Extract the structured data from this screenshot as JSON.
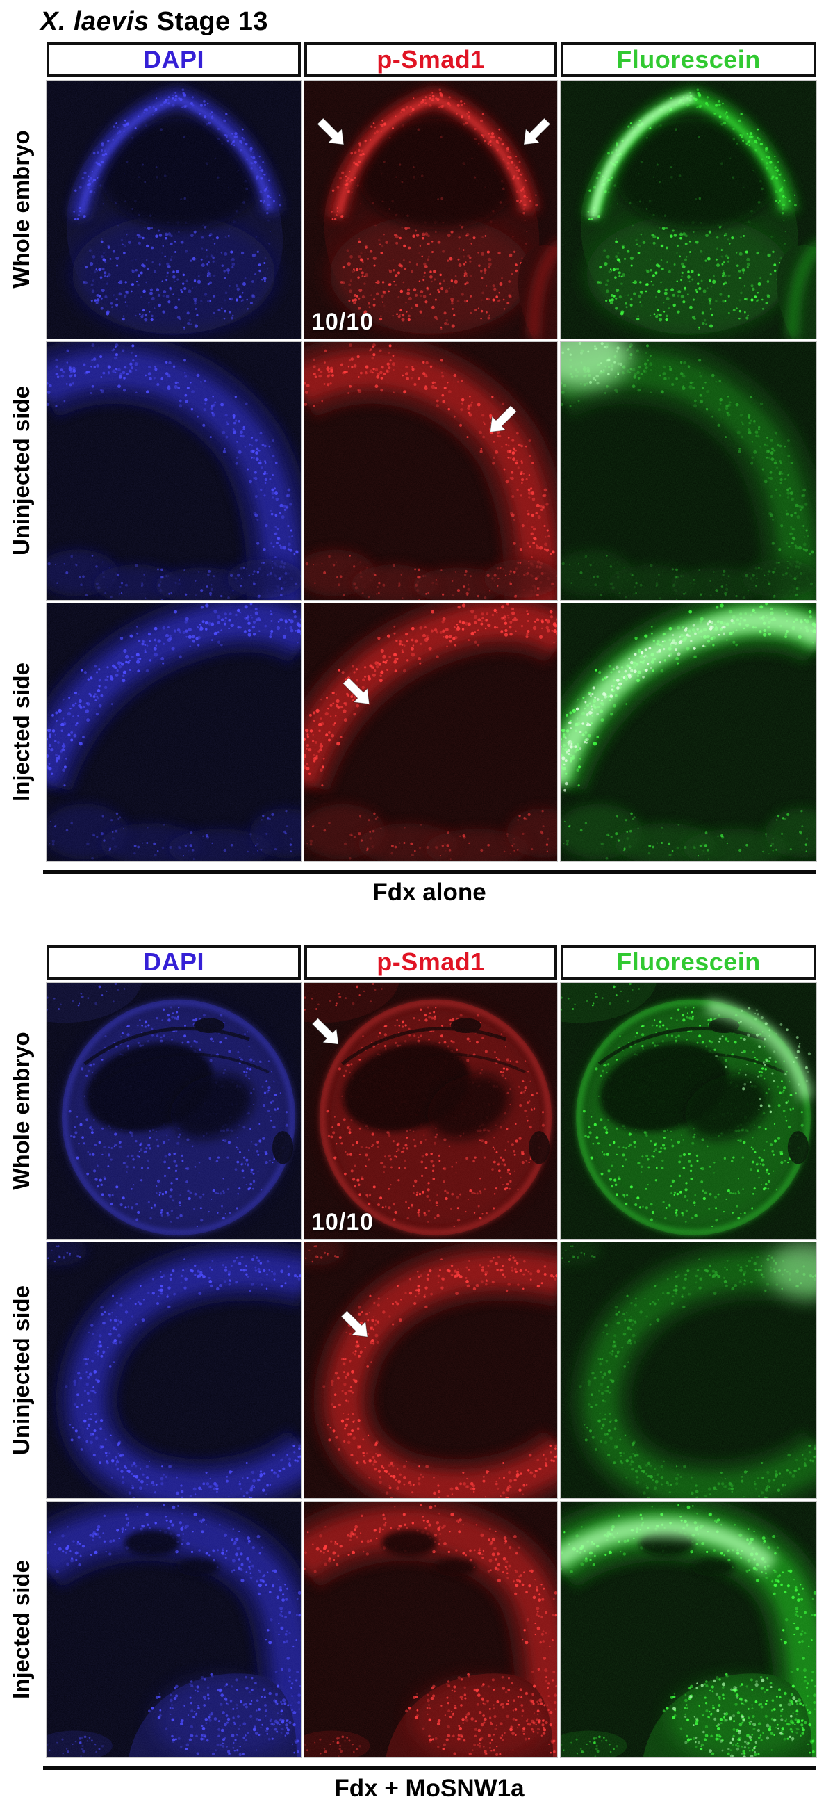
{
  "figure_title": {
    "species": "X. laevis",
    "stage": "Stage 13"
  },
  "channel_headers": [
    {
      "id": "dapi",
      "label": "DAPI",
      "color": "#3520d6"
    },
    {
      "id": "psmad1",
      "label": "p-Smad1",
      "color": "#e01424"
    },
    {
      "id": "fluorescein",
      "label": "Fluorescein",
      "color": "#31c931"
    }
  ],
  "groups": [
    {
      "id": "fdx-alone",
      "caption": "Fdx alone",
      "rows": [
        {
          "label": "Whole embryo",
          "scene": "s1",
          "panels": [
            {
              "channel": "dapi"
            },
            {
              "channel": "psmad1",
              "count_label": "10/10",
              "arrows": [
                {
                  "x": 15.6,
                  "y": 24.8,
                  "angle": 45
                },
                {
                  "x": 86.8,
                  "y": 24.8,
                  "angle": 135
                }
              ]
            },
            {
              "channel": "fluorescein"
            }
          ]
        },
        {
          "label": "Uninjected side",
          "scene": "s2",
          "panels": [
            {
              "channel": "dapi"
            },
            {
              "channel": "psmad1",
              "arrows": [
                {
                  "x": 73.5,
                  "y": 34.9,
                  "angle": 135
                }
              ]
            },
            {
              "channel": "fluorescein"
            }
          ]
        },
        {
          "label": "Injected side",
          "scene": "s3",
          "panels": [
            {
              "channel": "dapi"
            },
            {
              "channel": "psmad1",
              "arrows": [
                {
                  "x": 25.7,
                  "y": 39.0,
                  "angle": 45
                }
              ]
            },
            {
              "channel": "fluorescein"
            }
          ]
        }
      ]
    },
    {
      "id": "fdx-mosnw1a",
      "caption": "Fdx + MoSNW1a",
      "rows": [
        {
          "label": "Whole embryo",
          "scene": "s4",
          "panels": [
            {
              "channel": "dapi"
            },
            {
              "channel": "psmad1",
              "count_label": "10/10",
              "arrows": [
                {
                  "x": 13.5,
                  "y": 24.0,
                  "angle": 45
                }
              ]
            },
            {
              "channel": "fluorescein"
            }
          ]
        },
        {
          "label": "Uninjected side",
          "scene": "s5",
          "panels": [
            {
              "channel": "dapi"
            },
            {
              "channel": "psmad1",
              "arrows": [
                {
                  "x": 25.0,
                  "y": 37.0,
                  "angle": 45
                }
              ]
            },
            {
              "channel": "fluorescein"
            }
          ]
        },
        {
          "label": "Injected side",
          "scene": "s6",
          "panels": [
            {
              "channel": "dapi"
            },
            {
              "channel": "psmad1"
            },
            {
              "channel": "fluorescein"
            }
          ]
        }
      ]
    }
  ]
}
